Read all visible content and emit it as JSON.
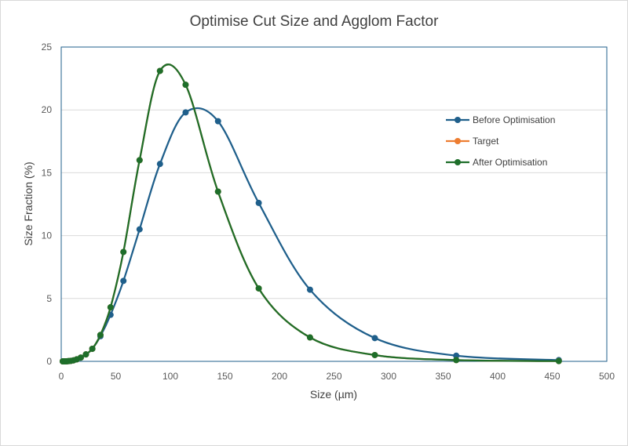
{
  "chart_data": {
    "type": "line",
    "title": "Optimise Cut Size and Agglom Factor",
    "xlabel": "Size (µm)",
    "ylabel": "Size Fraction (%)",
    "xlim": [
      0,
      500
    ],
    "ylim": [
      0,
      25
    ],
    "x_ticks": [
      "0",
      "50",
      "100",
      "150",
      "200",
      "250",
      "300",
      "350",
      "400",
      "450",
      "500"
    ],
    "y_ticks": [
      "0",
      "5",
      "10",
      "15",
      "20",
      "25"
    ],
    "grid": "horizontal",
    "legend_position": "right",
    "series": [
      {
        "name": "Before Optimisation",
        "color": "#1f5f8b",
        "x": [
          1.4,
          2.2,
          3.5,
          4.5,
          5.7,
          7.1,
          9.0,
          11.3,
          14.2,
          17.9,
          22.6,
          28.5,
          35.9,
          45.2,
          57.0,
          71.8,
          90.5,
          114,
          143.7,
          181,
          228,
          287.4,
          362,
          456
        ],
        "y": [
          0,
          0,
          0,
          0,
          0.01,
          0.02,
          0.04,
          0.08,
          0.15,
          0.3,
          0.55,
          1.0,
          2.0,
          3.7,
          6.4,
          10.5,
          15.7,
          19.8,
          19.1,
          12.6,
          5.7,
          1.85,
          0.45,
          0.1
        ]
      },
      {
        "name": "Target",
        "color": "#ed7d31",
        "x": [
          1.4,
          2.2,
          3.5,
          4.5,
          5.7,
          7.1,
          9.0,
          11.3,
          14.2,
          17.9,
          22.6,
          28.5,
          35.9,
          45.2,
          57.0,
          71.8,
          90.5,
          114,
          143.7,
          181,
          228,
          287.4,
          362,
          456
        ],
        "y": [
          0,
          0,
          0,
          0,
          0.01,
          0.02,
          0.04,
          0.08,
          0.16,
          0.3,
          0.55,
          1.0,
          2.1,
          4.3,
          8.7,
          16.0,
          23.1,
          22.0,
          13.5,
          5.8,
          1.9,
          0.5,
          0.1,
          0.02
        ]
      },
      {
        "name": "After Optimisation",
        "color": "#1e6e2a",
        "x": [
          1.4,
          2.2,
          3.5,
          4.5,
          5.7,
          7.1,
          9.0,
          11.3,
          14.2,
          17.9,
          22.6,
          28.5,
          35.9,
          45.2,
          57.0,
          71.8,
          90.5,
          114,
          143.7,
          181,
          228,
          287.4,
          362,
          456
        ],
        "y": [
          0,
          0,
          0,
          0,
          0.01,
          0.02,
          0.04,
          0.08,
          0.16,
          0.3,
          0.55,
          1.0,
          2.1,
          4.3,
          8.7,
          16.0,
          23.1,
          22.0,
          13.5,
          5.8,
          1.9,
          0.5,
          0.1,
          0.02
        ]
      }
    ]
  }
}
